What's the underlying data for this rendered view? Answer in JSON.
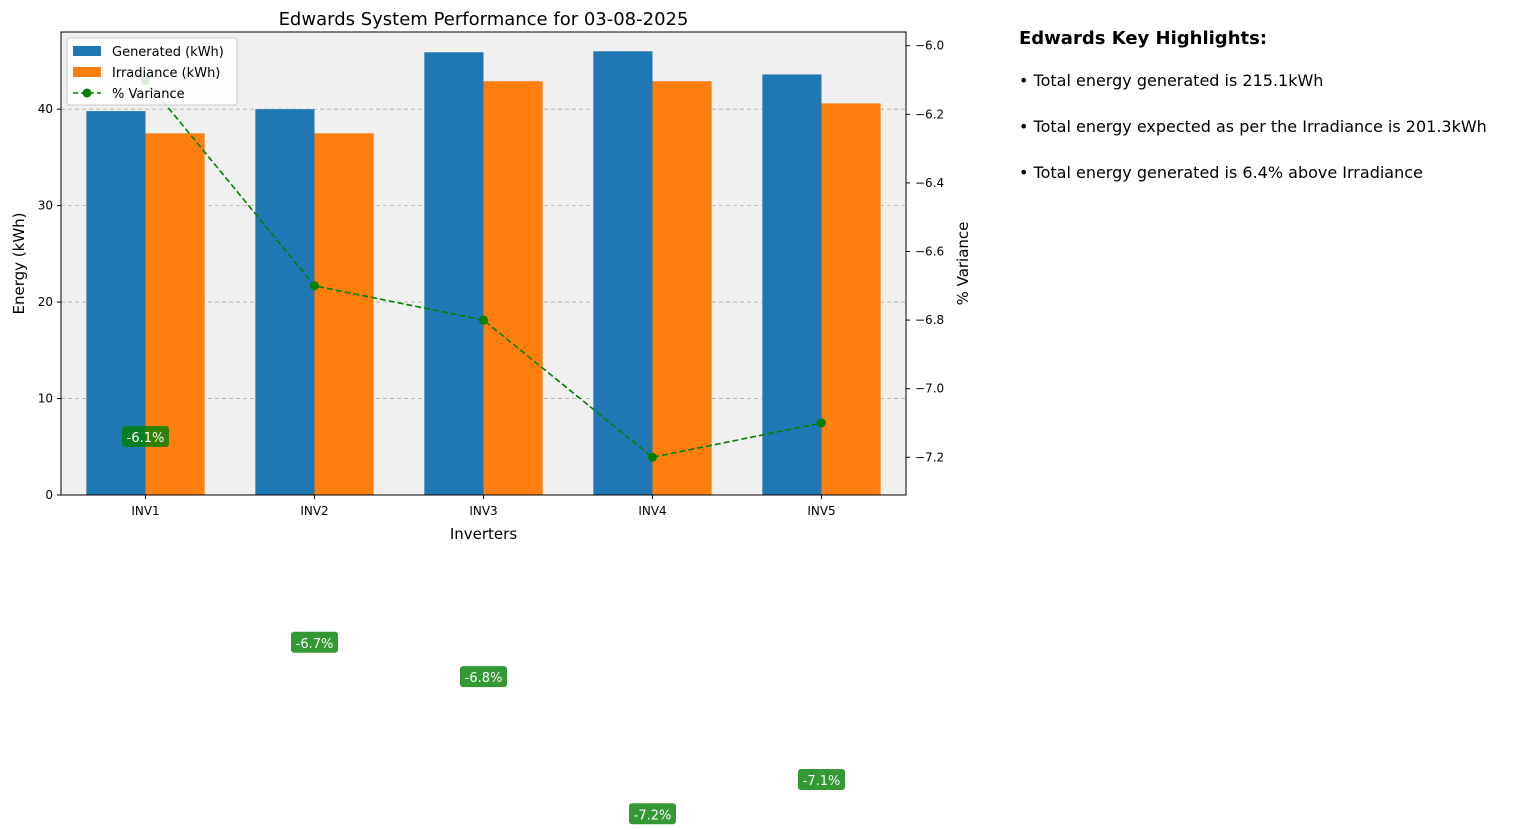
{
  "chart_data": {
    "type": "bar",
    "title": "Edwards System Performance for 03-08-2025",
    "xlabel": "Inverters",
    "ylabel": "Energy (kWh)",
    "y2label": "% Variance",
    "categories": [
      "INV1",
      "INV2",
      "INV3",
      "INV4",
      "INV5"
    ],
    "series": [
      {
        "name": "Generated (kWh)",
        "kind": "bar",
        "color": "#1f77b4",
        "values": [
          39.8,
          40.0,
          45.9,
          46.0,
          43.6
        ]
      },
      {
        "name": "Irradiance (kWh)",
        "kind": "bar",
        "color": "#ff7f0e",
        "values": [
          37.5,
          37.5,
          42.9,
          42.9,
          40.6
        ]
      },
      {
        "name": "% Variance",
        "kind": "line",
        "axis": "right",
        "color": "#008000",
        "style": "dashed",
        "values": [
          -6.1,
          -6.7,
          -6.8,
          -7.2,
          -7.1
        ]
      }
    ],
    "data_labels": [
      "-6.1%",
      "-6.7%",
      "-6.8%",
      "-7.2%",
      "-7.1%"
    ],
    "ylim": [
      0,
      48
    ],
    "y2lim": [
      -7.31,
      -5.96
    ],
    "yticks": [
      "0",
      "10",
      "20",
      "30",
      "40"
    ],
    "y2ticks": [
      "−6.0",
      "−6.2",
      "−6.4",
      "−6.6",
      "−6.8",
      "−7.0",
      "−7.2"
    ],
    "grid": "y dashed",
    "legend_position": "top-left",
    "background": "#f0f0f0"
  },
  "highlights": {
    "title": "Edwards Key Highlights:",
    "items": [
      "• Total energy generated is 215.1kWh",
      "• Total energy expected as per the Irradiance is 201.3kWh",
      "• Total energy generated is 6.4% above Irradiance"
    ]
  }
}
